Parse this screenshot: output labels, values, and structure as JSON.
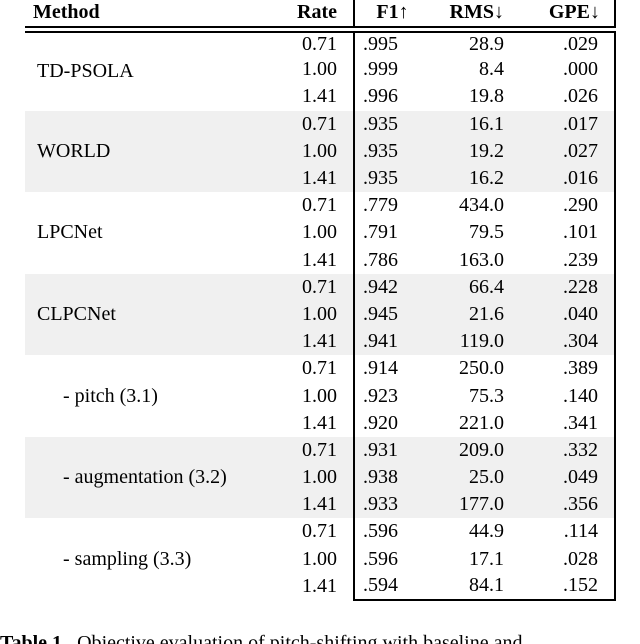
{
  "table": {
    "header": {
      "method": "Method",
      "rate": "Rate",
      "f1": "F1↑",
      "rms": "RMS↓",
      "gpe": "GPE↓"
    },
    "groups": [
      {
        "method": "TD-PSOLA",
        "indent": false,
        "shaded": false,
        "rows": [
          {
            "rate": "0.71",
            "f1": ".995",
            "rms": "28.9",
            "gpe": ".029"
          },
          {
            "rate": "1.00",
            "f1": ".999",
            "rms": "8.4",
            "gpe": ".000"
          },
          {
            "rate": "1.41",
            "f1": ".996",
            "rms": "19.8",
            "gpe": ".026"
          }
        ]
      },
      {
        "method": "WORLD",
        "indent": false,
        "shaded": true,
        "rows": [
          {
            "rate": "0.71",
            "f1": ".935",
            "rms": "16.1",
            "gpe": ".017"
          },
          {
            "rate": "1.00",
            "f1": ".935",
            "rms": "19.2",
            "gpe": ".027"
          },
          {
            "rate": "1.41",
            "f1": ".935",
            "rms": "16.2",
            "gpe": ".016"
          }
        ]
      },
      {
        "method": "LPCNet",
        "indent": false,
        "shaded": false,
        "rows": [
          {
            "rate": "0.71",
            "f1": ".779",
            "rms": "434.0",
            "gpe": ".290"
          },
          {
            "rate": "1.00",
            "f1": ".791",
            "rms": "79.5",
            "gpe": ".101"
          },
          {
            "rate": "1.41",
            "f1": ".786",
            "rms": "163.0",
            "gpe": ".239"
          }
        ]
      },
      {
        "method": "CLPCNet",
        "indent": false,
        "shaded": true,
        "rows": [
          {
            "rate": "0.71",
            "f1": ".942",
            "rms": "66.4",
            "gpe": ".228"
          },
          {
            "rate": "1.00",
            "f1": ".945",
            "rms": "21.6",
            "gpe": ".040"
          },
          {
            "rate": "1.41",
            "f1": ".941",
            "rms": "119.0",
            "gpe": ".304"
          }
        ]
      },
      {
        "method": "- pitch (3.1)",
        "indent": true,
        "shaded": false,
        "rows": [
          {
            "rate": "0.71",
            "f1": ".914",
            "rms": "250.0",
            "gpe": ".389"
          },
          {
            "rate": "1.00",
            "f1": ".923",
            "rms": "75.3",
            "gpe": ".140"
          },
          {
            "rate": "1.41",
            "f1": ".920",
            "rms": "221.0",
            "gpe": ".341"
          }
        ]
      },
      {
        "method": "- augmentation (3.2)",
        "indent": true,
        "shaded": true,
        "rows": [
          {
            "rate": "0.71",
            "f1": ".931",
            "rms": "209.0",
            "gpe": ".332"
          },
          {
            "rate": "1.00",
            "f1": ".938",
            "rms": "25.0",
            "gpe": ".049"
          },
          {
            "rate": "1.41",
            "f1": ".933",
            "rms": "177.0",
            "gpe": ".356"
          }
        ]
      },
      {
        "method": "- sampling (3.3)",
        "indent": true,
        "shaded": false,
        "rows": [
          {
            "rate": "0.71",
            "f1": ".596",
            "rms": "44.9",
            "gpe": ".114"
          },
          {
            "rate": "1.00",
            "f1": ".596",
            "rms": "17.1",
            "gpe": ".028"
          },
          {
            "rate": "1.41",
            "f1": ".594",
            "rms": "84.1",
            "gpe": ".152"
          }
        ]
      }
    ]
  },
  "caption": {
    "label": "Table 1.",
    "text": "Objective evaluation of pitch-shifting with baseline and"
  },
  "colors": {
    "shade": "#f0f0f0",
    "rule": "#000000"
  }
}
